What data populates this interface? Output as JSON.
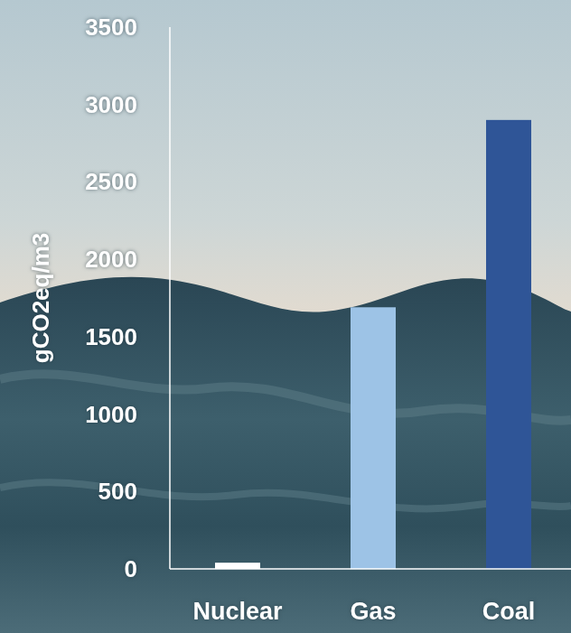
{
  "chart_data": {
    "type": "bar",
    "y_label": "gCO2eq/m3",
    "categories": [
      "Nuclear",
      "Gas",
      "Coal"
    ],
    "values": [
      40,
      1690,
      2900
    ],
    "colors": [
      "#ffffff",
      "#9dc3e6",
      "#2f5597"
    ],
    "ylim": [
      0,
      3500
    ],
    "yticks": [
      0,
      500,
      1000,
      1500,
      2000,
      2500,
      3000,
      3500
    ],
    "grid": false
  }
}
